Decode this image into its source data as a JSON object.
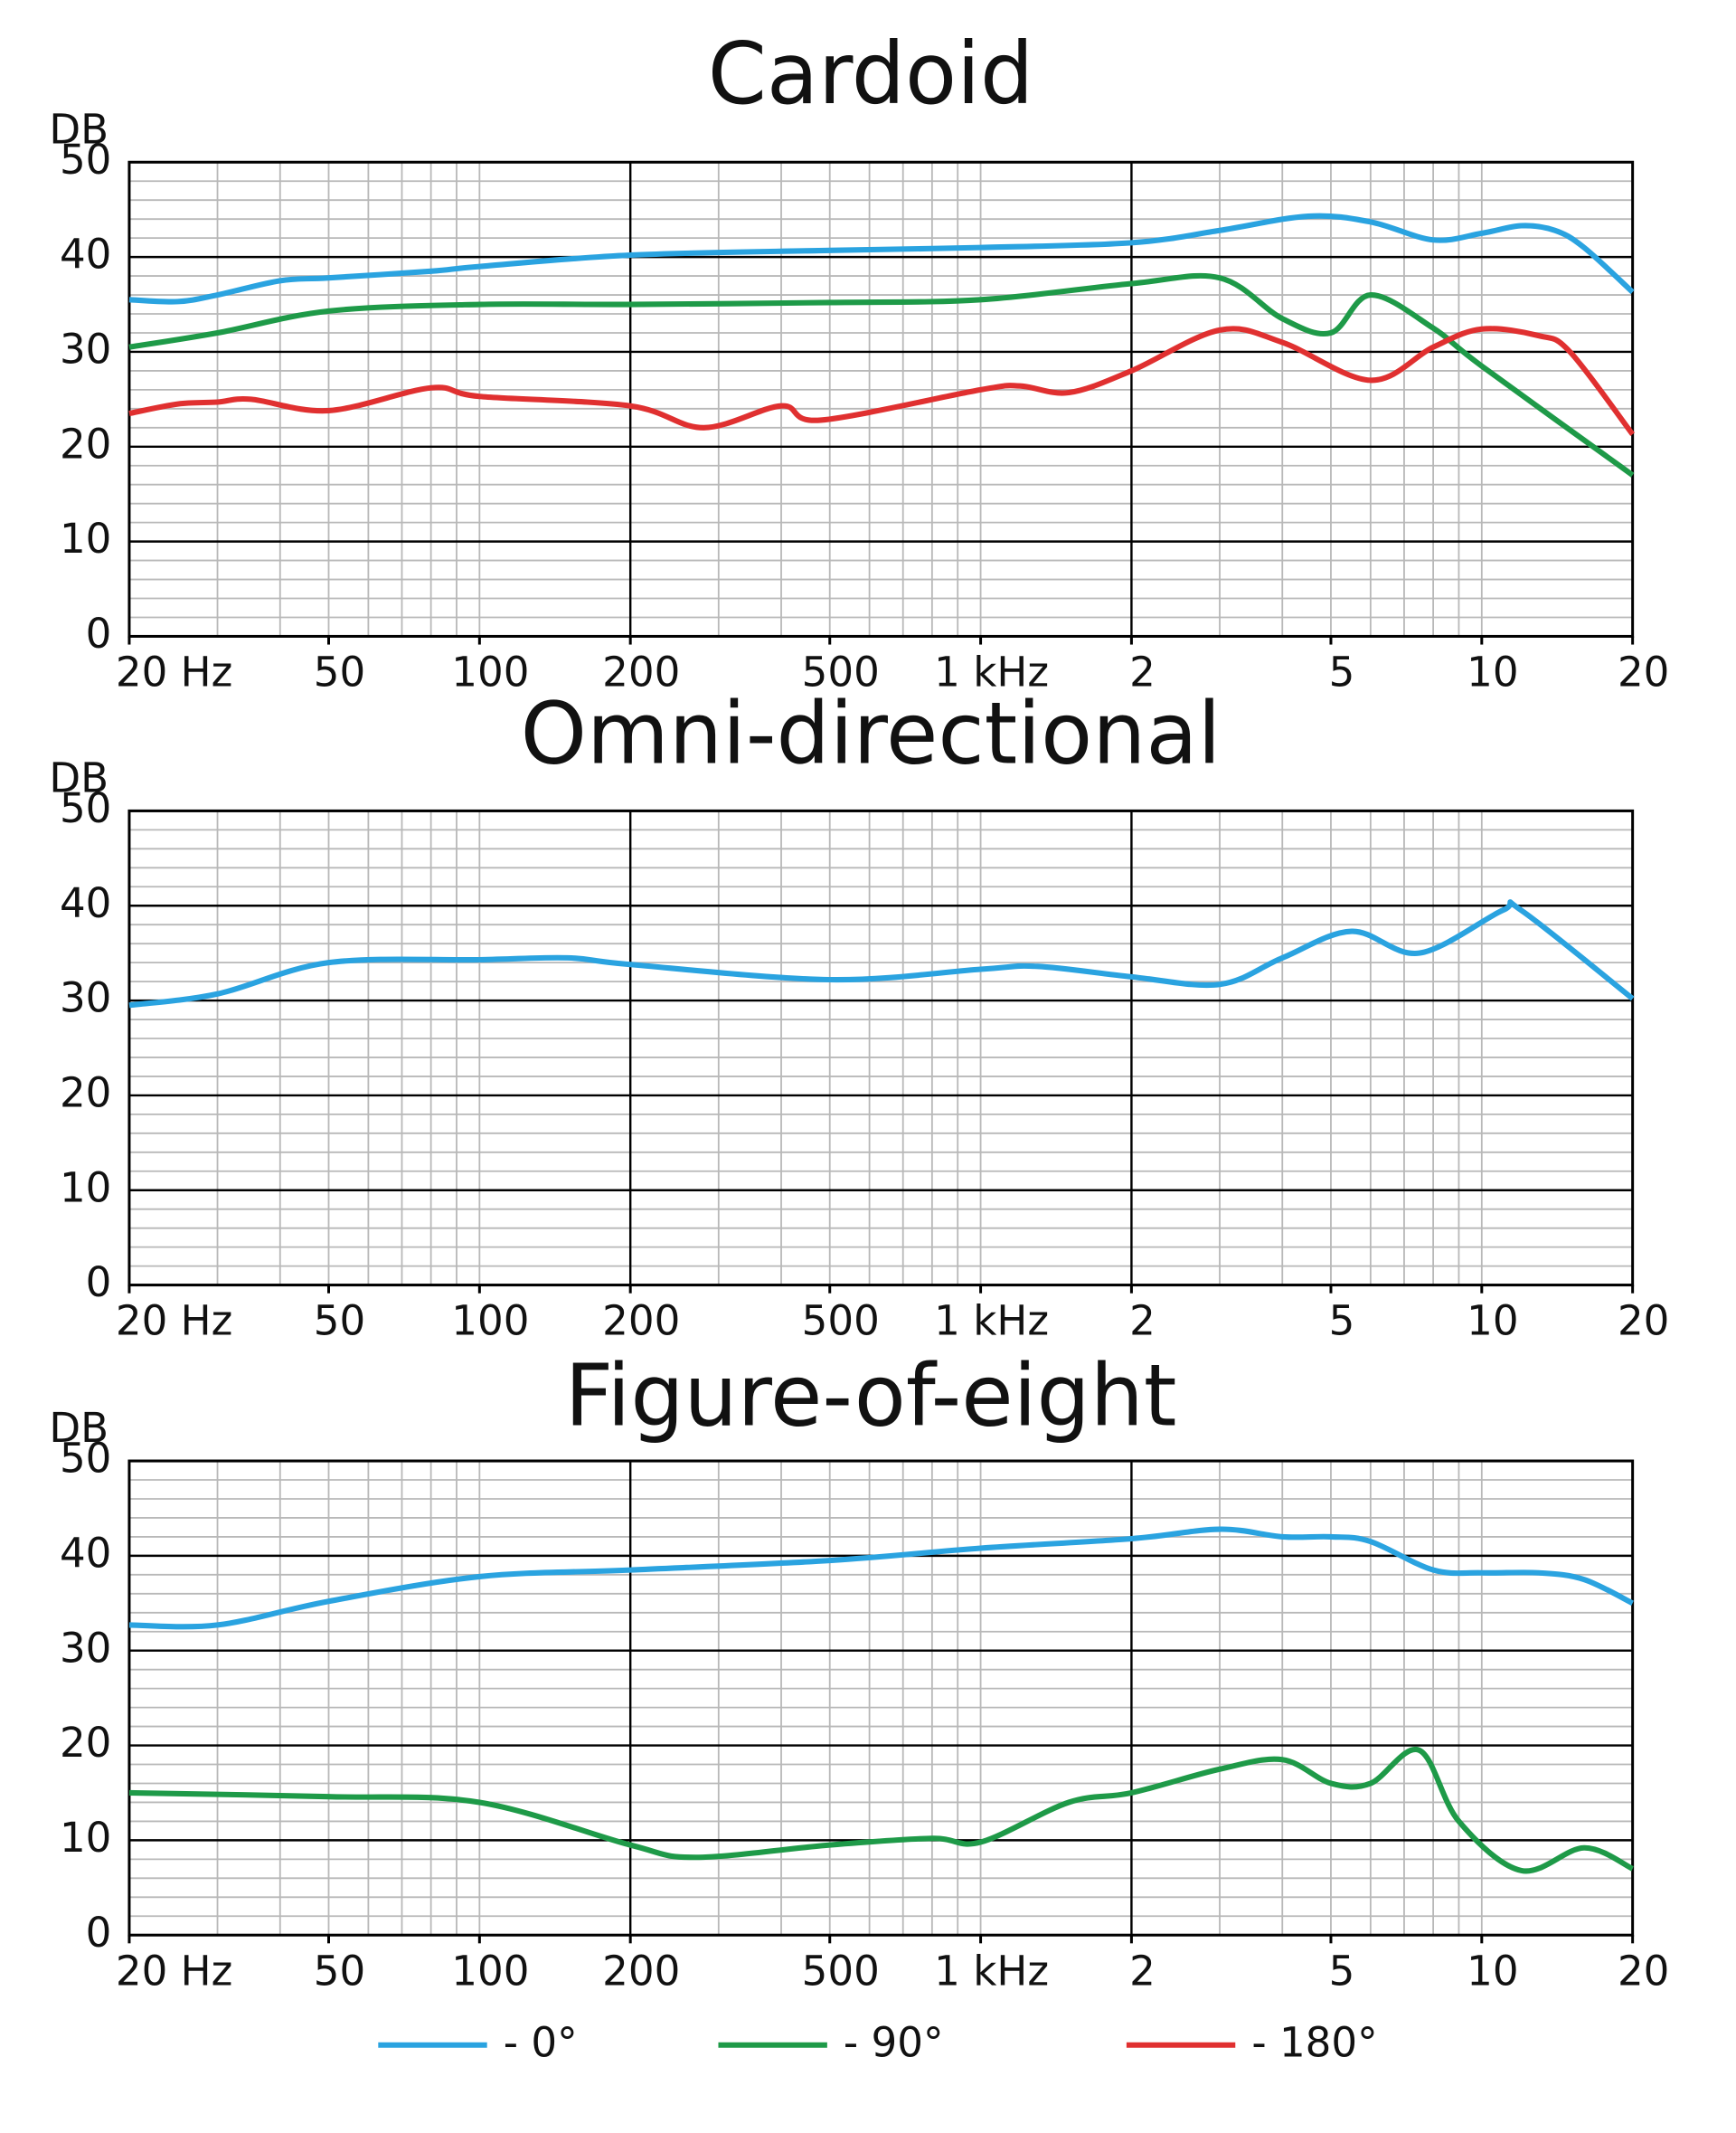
{
  "chart_data": [
    {
      "type": "line",
      "title": "Cardoid",
      "ylabel": "DB",
      "log_x": true,
      "grid": true,
      "minor_ystep": 2,
      "xlim": [
        20,
        20000
      ],
      "ylim": [
        0,
        50
      ],
      "yticks": [
        0,
        10,
        20,
        30,
        40,
        50
      ],
      "xgrid_major": [
        200,
        2000
      ],
      "xticks": [
        {
          "value": 20,
          "label": "20  Hz"
        },
        50,
        100,
        200,
        500,
        {
          "value": 1000,
          "label": "1 kHz"
        },
        {
          "value": 2000,
          "label": "2"
        },
        {
          "value": 5000,
          "label": "5"
        },
        {
          "value": 10000,
          "label": "10"
        },
        {
          "value": 20000,
          "label": "20"
        }
      ],
      "series": [
        {
          "name": "- 0°",
          "color": "#2aa3e0",
          "x": [
            20,
            25,
            30,
            40,
            50,
            80,
            100,
            200,
            500,
            1000,
            2000,
            3000,
            4500,
            6000,
            8000,
            10000,
            12000,
            14000,
            16000,
            20000
          ],
          "values": [
            35.5,
            35.3,
            36,
            37.5,
            37.8,
            38.5,
            39,
            40.2,
            40.7,
            41,
            41.5,
            42.8,
            44.3,
            43.7,
            41.8,
            42.5,
            43.3,
            42.8,
            41,
            36.3
          ]
        },
        {
          "name": "- 90°",
          "color": "#1e9a48",
          "x": [
            20,
            30,
            50,
            100,
            200,
            500,
            1000,
            2000,
            3000,
            4000,
            5000,
            6000,
            8000,
            10000,
            20000
          ],
          "values": [
            30.5,
            32,
            34.3,
            35,
            35,
            35.2,
            35.5,
            37.2,
            37.8,
            33.5,
            32,
            36,
            32.5,
            28.5,
            17
          ]
        },
        {
          "name": "- 180°",
          "color": "#e03030",
          "x": [
            20,
            25,
            30,
            35,
            50,
            80,
            100,
            200,
            280,
            400,
            480,
            1000,
            1200,
            1500,
            2000,
            3000,
            4000,
            6000,
            8000,
            10000,
            13000,
            15000,
            20000
          ],
          "values": [
            23.5,
            24.5,
            24.7,
            25,
            23.8,
            26.2,
            25.3,
            24.3,
            22,
            24.3,
            22.8,
            26,
            26.4,
            25.7,
            28,
            32.3,
            31,
            27,
            30.5,
            32.4,
            31.7,
            30,
            21.3
          ]
        }
      ]
    },
    {
      "type": "line",
      "title": "Omni-directional",
      "ylabel": "DB",
      "log_x": true,
      "grid": true,
      "minor_ystep": 2,
      "xlim": [
        20,
        20000
      ],
      "ylim": [
        0,
        50
      ],
      "yticks": [
        0,
        10,
        20,
        30,
        40,
        50
      ],
      "xgrid_major": [
        200,
        2000
      ],
      "xticks": [
        {
          "value": 20,
          "label": "20  Hz"
        },
        50,
        100,
        200,
        500,
        {
          "value": 1000,
          "label": "1 kHz"
        },
        {
          "value": 2000,
          "label": "2"
        },
        {
          "value": 5000,
          "label": "5"
        },
        {
          "value": 10000,
          "label": "10"
        },
        {
          "value": 20000,
          "label": "20"
        }
      ],
      "series": [
        {
          "color": "#2aa3e0",
          "x": [
            20,
            30,
            50,
            100,
            150,
            200,
            500,
            1000,
            1300,
            2000,
            3000,
            4000,
            5500,
            7500,
            11000,
            12000,
            20000
          ],
          "values": [
            29.5,
            30.7,
            34,
            34.3,
            34.5,
            33.8,
            32.2,
            33.3,
            33.6,
            32.5,
            31.7,
            34.5,
            37.3,
            35,
            39.5,
            39.5,
            30.2
          ]
        }
      ]
    },
    {
      "type": "line",
      "title": "Figure-of-eight",
      "ylabel": "DB",
      "log_x": true,
      "grid": true,
      "minor_ystep": 2,
      "xlim": [
        20,
        20000
      ],
      "ylim": [
        0,
        50
      ],
      "yticks": [
        0,
        10,
        20,
        30,
        40,
        50
      ],
      "xgrid_major": [
        200,
        2000
      ],
      "xticks": [
        {
          "value": 20,
          "label": "20  Hz"
        },
        50,
        100,
        200,
        500,
        {
          "value": 1000,
          "label": "1 kHz"
        },
        {
          "value": 2000,
          "label": "2"
        },
        {
          "value": 5000,
          "label": "5"
        },
        {
          "value": 10000,
          "label": "10"
        },
        {
          "value": 20000,
          "label": "20"
        }
      ],
      "series": [
        {
          "color": "#2aa3e0",
          "x": [
            20,
            30,
            50,
            100,
            200,
            500,
            1000,
            2000,
            3000,
            4000,
            5000,
            6000,
            8000,
            10000,
            13000,
            16000,
            20000
          ],
          "values": [
            32.7,
            32.7,
            35.2,
            37.8,
            38.5,
            39.5,
            40.8,
            41.8,
            42.8,
            42,
            42,
            41.5,
            38.5,
            38.2,
            38.2,
            37.5,
            35
          ]
        },
        {
          "color": "#1e9a48",
          "x": [
            20,
            50,
            100,
            200,
            270,
            500,
            800,
            1000,
            1500,
            2000,
            3000,
            4000,
            5000,
            6000,
            7500,
            9000,
            12000,
            16000,
            20000
          ],
          "values": [
            15,
            14.6,
            14,
            9.5,
            8.2,
            9.5,
            10.2,
            9.8,
            14,
            15,
            17.5,
            18.5,
            16,
            16,
            19.5,
            12,
            6.8,
            9.2,
            7
          ]
        }
      ]
    }
  ]
}
